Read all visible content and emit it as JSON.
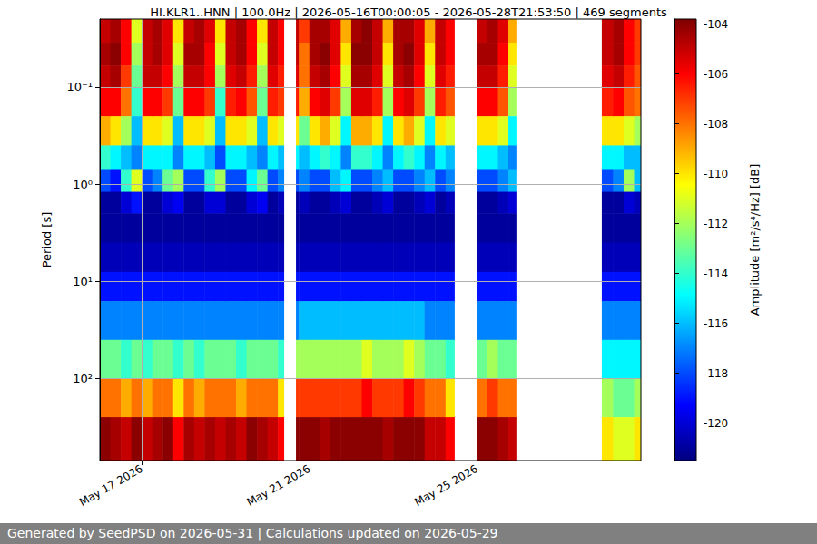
{
  "chart_data": {
    "type": "heatmap",
    "title": "HI.KLR1..HNN | 100.0Hz | 2026-05-16T00:00:05 - 2026-05-28T21:53:50 | 469 segments",
    "footer": "Generated by SeedPSD on 2026-05-31 | Calculations updated on 2026-05-29",
    "ylabel": "Period [s]",
    "log": "y",
    "grid": true,
    "xlim": [
      "2026-05-16T00:00:05",
      "2026-05-28T21:53:50"
    ],
    "xticks": [
      {
        "value": "2026-05-17",
        "label": "May 17 2026"
      },
      {
        "value": "2026-05-21",
        "label": "May 21 2026"
      },
      {
        "value": "2026-05-25",
        "label": "May 25 2026"
      }
    ],
    "ylim": [
      0.02,
      700
    ],
    "yticks": [
      {
        "value": 0.1,
        "label": "10⁻¹"
      },
      {
        "value": 1,
        "label": "10⁰"
      },
      {
        "value": 10,
        "label": "10¹"
      },
      {
        "value": 100,
        "label": "10²"
      }
    ],
    "x_edges": [
      "2026-05-16T00:00:05",
      "2026-05-16T06:00:00",
      "2026-05-16T12:00:00",
      "2026-05-16T18:00:00",
      "2026-05-17T00:00:00",
      "2026-05-17T06:00:00",
      "2026-05-17T12:00:00",
      "2026-05-17T18:00:00",
      "2026-05-18T00:00:00",
      "2026-05-18T06:00:00",
      "2026-05-18T12:00:00",
      "2026-05-18T18:00:00",
      "2026-05-19T00:00:00",
      "2026-05-19T06:00:00",
      "2026-05-19T12:00:00",
      "2026-05-19T18:00:00",
      "2026-05-20T00:00:00",
      "2026-05-20T06:00:00",
      "2026-05-20T09:20:00",
      "2026-05-20T16:20:00",
      "2026-05-20T18:00:00",
      "2026-05-21T00:00:00",
      "2026-05-21T06:00:00",
      "2026-05-21T12:00:00",
      "2026-05-21T18:00:00",
      "2026-05-22T00:00:00",
      "2026-05-22T06:00:00",
      "2026-05-22T12:00:00",
      "2026-05-22T18:00:00",
      "2026-05-23T00:00:00",
      "2026-05-23T06:00:00",
      "2026-05-23T12:00:00",
      "2026-05-23T18:00:00",
      "2026-05-24T00:00:00",
      "2026-05-24T06:00:00",
      "2026-05-24T11:00:00",
      "2026-05-25T00:00:00",
      "2026-05-25T06:00:00",
      "2026-05-25T12:00:00",
      "2026-05-25T18:00:00",
      "2026-05-25T22:20:00",
      "2026-05-27T23:30:00",
      "2026-05-28T06:00:00",
      "2026-05-28T12:00:00",
      "2026-05-28T18:00:00",
      "2026-05-28T21:53:50"
    ],
    "y_edges": [
      0.02,
      0.035,
      0.06,
      0.1,
      0.2,
      0.4,
      0.7,
      1.2,
      2,
      4,
      8,
      16,
      40,
      100,
      250,
      700
    ],
    "cells": [
      [
        -105,
        -104.5,
        -105,
        -106,
        -109,
        -114,
        -118,
        -121,
        -121,
        -120.5,
        -119,
        -117,
        -113,
        -108,
        -104
      ],
      [
        -104.5,
        -104,
        -104.5,
        -106,
        -110,
        -115,
        -119,
        -121,
        -121,
        -120.5,
        -119,
        -117,
        -113,
        -108,
        -104.5
      ],
      [
        -106,
        -106,
        -107,
        -108,
        -112,
        -116,
        -114,
        -120,
        -121,
        -120.5,
        -119,
        -117,
        -114,
        -109,
        -105
      ],
      [
        -111,
        -112,
        -113,
        -114,
        -116,
        -117,
        -111,
        -119,
        -121,
        -120.5,
        -119,
        -117,
        -113,
        -108,
        -104
      ],
      [
        -105,
        -105,
        -105,
        -106,
        -110,
        -115,
        -118,
        -121,
        -121,
        -120.5,
        -119,
        -117,
        -114,
        -109,
        -105
      ],
      [
        -104.5,
        -104.5,
        -105,
        -106,
        -110,
        -115,
        -117,
        -121,
        -121,
        -120.5,
        -119,
        -117,
        -113,
        -108,
        -104.5
      ],
      [
        -105.5,
        -105.5,
        -106,
        -107,
        -111,
        -115,
        -113,
        -120,
        -121,
        -120.5,
        -119,
        -117,
        -113,
        -108,
        -104
      ],
      [
        -110,
        -111,
        -112,
        -113,
        -116,
        -117,
        -112,
        -119.5,
        -121,
        -120.5,
        -119,
        -117,
        -114,
        -110,
        -106
      ],
      [
        -105,
        -104.5,
        -105,
        -106,
        -110,
        -115,
        -118,
        -121,
        -121,
        -120.5,
        -119,
        -117,
        -113,
        -108,
        -104.5
      ],
      [
        -104.5,
        -104.5,
        -105,
        -106,
        -110,
        -115,
        -118,
        -121,
        -121,
        -120.5,
        -119,
        -117,
        -114,
        -109,
        -105
      ],
      [
        -105.5,
        -106,
        -106,
        -107,
        -111,
        -116,
        -114,
        -120,
        -121,
        -120.5,
        -119,
        -117,
        -113,
        -108,
        -104.5
      ],
      [
        -110,
        -111,
        -112,
        -114,
        -116,
        -118,
        -112,
        -120,
        -121,
        -120.5,
        -119,
        -117,
        -113,
        -108,
        -105
      ],
      [
        -105,
        -105,
        -105.5,
        -106.5,
        -110,
        -115,
        -118,
        -121,
        -121,
        -120.5,
        -119,
        -117,
        -113,
        -108,
        -104.5
      ],
      [
        -104.5,
        -104.5,
        -105,
        -106,
        -110,
        -115,
        -118,
        -121,
        -121,
        -120.5,
        -119,
        -117,
        -114,
        -109,
        -105
      ],
      [
        -106,
        -106,
        -106.5,
        -107.5,
        -111,
        -116,
        -115,
        -120,
        -121,
        -120.5,
        -119,
        -117,
        -113,
        -108,
        -104
      ],
      [
        -110,
        -111,
        -112,
        -113,
        -116,
        -117,
        -113,
        -119.5,
        -121,
        -120.5,
        -119,
        -117,
        -113,
        -108,
        -104.5
      ],
      [
        -105,
        -105,
        -105.5,
        -106.5,
        -110,
        -115,
        -118,
        -121,
        -121,
        -120.5,
        -119,
        -117,
        -113,
        -108,
        -105
      ],
      [
        -106,
        -106,
        -106.5,
        -107,
        -111,
        -116,
        -117,
        -120.5,
        -121,
        -120.5,
        -119,
        -117,
        -114,
        -110,
        -106
      ],
      null,
      [
        -105,
        -105,
        -105.5,
        -106.5,
        -110,
        -115,
        -118,
        -121,
        -121,
        -120.5,
        -119,
        -117,
        -112,
        -107,
        -104
      ],
      [
        -107,
        -108,
        -108,
        -109,
        -113,
        -116,
        -117,
        -120.5,
        -121,
        -120.5,
        -119,
        -116,
        -112,
        -107,
        -104
      ],
      [
        -104.5,
        -104.5,
        -105,
        -106,
        -110,
        -115,
        -118,
        -121,
        -121,
        -120.5,
        -119,
        -116,
        -112,
        -107,
        -104
      ],
      [
        -104.5,
        -104,
        -104.5,
        -105.5,
        -109,
        -114,
        -118,
        -121,
        -121,
        -120.5,
        -119,
        -116,
        -112,
        -107,
        -104.5
      ],
      [
        -105.5,
        -105.5,
        -106,
        -107,
        -111,
        -115,
        -116,
        -120.5,
        -121,
        -120.5,
        -119,
        -116,
        -112,
        -107,
        -104
      ],
      [
        -109,
        -110,
        -111,
        -112,
        -115,
        -117,
        -115,
        -120,
        -121,
        -120.5,
        -119,
        -116,
        -112,
        -107,
        -104
      ],
      [
        -104.5,
        -104,
        -104.5,
        -105.5,
        -109,
        -114,
        -118,
        -121,
        -121,
        -120.5,
        -119,
        -116,
        -112,
        -107,
        -104
      ],
      [
        -104,
        -104,
        -104.5,
        -105.5,
        -109,
        -114,
        -118,
        -121,
        -121,
        -120.5,
        -119,
        -116,
        -111,
        -106,
        -104
      ],
      [
        -105,
        -105,
        -105.5,
        -106.5,
        -110,
        -115,
        -117,
        -120.5,
        -121,
        -120.5,
        -119,
        -116,
        -112,
        -107,
        -104
      ],
      [
        -109,
        -110,
        -111,
        -112,
        -115,
        -117,
        -116,
        -120,
        -121,
        -120.5,
        -119,
        -116,
        -112,
        -107,
        -104.5
      ],
      [
        -104.5,
        -104.5,
        -105,
        -106,
        -110,
        -115,
        -118,
        -121,
        -121,
        -120.5,
        -119,
        -116,
        -112,
        -107,
        -104
      ],
      [
        -104.5,
        -104,
        -104.5,
        -105.5,
        -109,
        -114,
        -118,
        -121,
        -121,
        -120.5,
        -119,
        -116,
        -111,
        -106,
        -104
      ],
      [
        -105.5,
        -105.5,
        -106,
        -107,
        -111,
        -115,
        -117,
        -120.5,
        -121,
        -120.5,
        -119,
        -116,
        -112,
        -107,
        -104
      ],
      [
        -109,
        -110,
        -111,
        -112,
        -115,
        -117,
        -116,
        -120,
        -121,
        -120.5,
        -119,
        -117,
        -113,
        -108,
        -105
      ],
      [
        -105,
        -105,
        -105.5,
        -106.5,
        -110,
        -115,
        -118,
        -121,
        -121,
        -120.5,
        -119,
        -117,
        -113,
        -108,
        -105
      ],
      [
        -106,
        -106,
        -106.5,
        -107.5,
        -111,
        -116,
        -117,
        -120.5,
        -121,
        -120.5,
        -119,
        -117,
        -114,
        -110,
        -106
      ],
      null,
      [
        -105,
        -104.5,
        -105,
        -106,
        -110,
        -115,
        -118,
        -121,
        -121,
        -120.5,
        -119,
        -117,
        -113,
        -108,
        -104
      ],
      [
        -104.5,
        -104.5,
        -105,
        -106,
        -110,
        -115,
        -118,
        -121,
        -121,
        -120.5,
        -119,
        -117,
        -112,
        -107,
        -104
      ],
      [
        -105.5,
        -106,
        -106.5,
        -107.5,
        -111,
        -116,
        -117,
        -120.5,
        -121,
        -120.5,
        -119,
        -117,
        -113,
        -108,
        -104.5
      ],
      [
        -109,
        -110,
        -111,
        -112,
        -115,
        -117,
        -116,
        -120,
        -121,
        -120.5,
        -119,
        -117,
        -113,
        -108,
        -105
      ],
      null,
      [
        -105,
        -105,
        -105.5,
        -106.5,
        -110,
        -115,
        -118,
        -121,
        -121,
        -120.5,
        -119,
        -117,
        -115,
        -112,
        -110
      ],
      [
        -104.5,
        -104.5,
        -105,
        -106,
        -110,
        -115,
        -117,
        -121,
        -121,
        -120.5,
        -119,
        -117,
        -115,
        -113,
        -111
      ],
      [
        -106,
        -106,
        -106.5,
        -107.5,
        -111,
        -116,
        -112,
        -120,
        -121,
        -120.5,
        -119,
        -117,
        -115,
        -113,
        -111
      ],
      [
        -107,
        -107,
        -107.5,
        -108,
        -112,
        -116,
        -116,
        -120.5,
        -121,
        -120.5,
        -119,
        -117,
        -115,
        -112,
        -110
      ]
    ],
    "colorbar": {
      "label": "Amplitude [m²/s⁴/Hz] [dB]",
      "range": [
        -121.5,
        -103.8
      ],
      "ticks": [
        -120,
        -118,
        -116,
        -114,
        -112,
        -110,
        -108,
        -106,
        -104
      ]
    }
  }
}
